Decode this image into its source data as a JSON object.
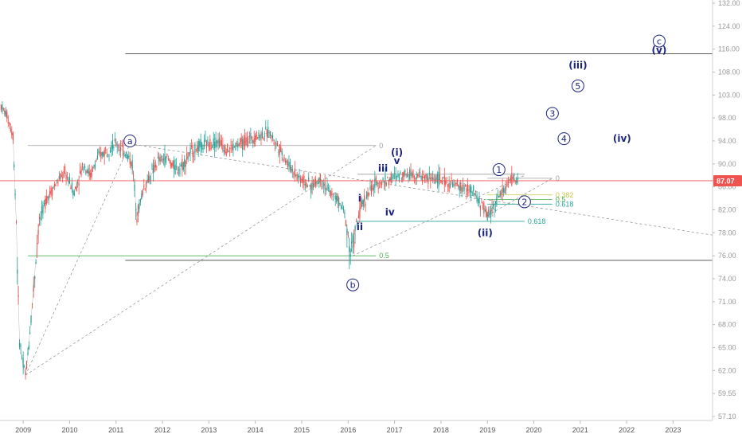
{
  "chart_data": {
    "type": "line",
    "title": "",
    "xlabel": "",
    "ylabel": "",
    "ylim": [
      56,
      134
    ],
    "xlim": [
      2008.5,
      2023.85
    ],
    "x_ticks": [
      "2009",
      "2010",
      "2011",
      "2012",
      "2013",
      "2014",
      "2015",
      "2016",
      "2017",
      "2018",
      "2019",
      "2020",
      "2021",
      "2022",
      "2023"
    ],
    "y_ticks": [
      "57.10",
      "59.55",
      "62.00",
      "65.00",
      "68.00",
      "71.00",
      "74.00",
      "76.00",
      "78.00",
      "82.00",
      "86.00",
      "90.00",
      "94.00",
      "98.00",
      "103.00",
      "108.00",
      "116.00",
      "124.00",
      "132.00"
    ],
    "last_price": {
      "value": 87.07,
      "label": "87.07",
      "color": "#ef5350"
    },
    "colors": {
      "up": "#26a69a",
      "down": "#ef5350",
      "price": "#d14b4b",
      "wave": "#1a237e",
      "hline": "#444444",
      "fib_green": "#4caf50",
      "fib_yellow": "#c8c84a",
      "fib_teal": "#26a69a"
    },
    "series": [
      {
        "x": [
          2008.5,
          2008.65,
          2008.78,
          2008.85,
          2008.92,
          2009.0,
          2009.05,
          2009.1,
          2009.17,
          2009.25,
          2009.35,
          2009.5,
          2009.7,
          2009.9,
          2010.1,
          2010.3,
          2010.45,
          2010.6,
          2010.8,
          2011.0,
          2011.2,
          2011.35,
          2011.45,
          2011.6,
          2011.75,
          2011.9,
          2012.1,
          2012.3,
          2012.45,
          2012.6,
          2012.8,
          2013.0,
          2013.2,
          2013.4,
          2013.55,
          2013.7,
          2013.9,
          2014.1,
          2014.3,
          2014.5,
          2014.7,
          2014.9,
          2015.05,
          2015.2,
          2015.4,
          2015.6,
          2015.75,
          2015.9,
          2016.0,
          2016.05,
          2016.1,
          2016.2,
          2016.3,
          2016.45,
          2016.6,
          2016.8,
          2016.95,
          2017.1,
          2017.3,
          2017.5,
          2017.7,
          2017.9,
          2018.05,
          2018.2,
          2018.4,
          2018.6,
          2018.75,
          2018.85,
          2018.95,
          2019.0,
          2019.15,
          2019.3,
          2019.45,
          2019.55,
          2019.65
        ],
        "y": [
          101,
          98.5,
          95,
          80,
          66,
          62.5,
          61.5,
          64,
          69,
          74.5,
          80,
          84,
          86.5,
          88.5,
          85,
          90,
          88,
          91,
          92.5,
          93.5,
          92,
          90,
          81,
          86,
          88,
          90.5,
          91,
          89,
          90,
          92,
          93,
          93.5,
          94,
          92.5,
          93,
          93.5,
          94.5,
          95,
          95.5,
          93,
          90,
          88,
          87,
          86,
          87.5,
          85,
          84,
          82,
          78,
          76.2,
          77,
          80,
          83,
          85,
          86.5,
          87,
          87.5,
          88,
          88.5,
          88,
          87.5,
          87.5,
          87,
          86.5,
          86,
          85.5,
          84.5,
          83,
          82,
          80.8,
          83,
          85,
          86.5,
          87.5,
          87.07
        ]
      }
    ],
    "horizontal_lines": [
      {
        "y": 114.4,
        "x_start": 2011.2,
        "x_end": 2023.85,
        "color": "#444444",
        "label": ""
      },
      {
        "y": 75.6,
        "x_start": 2011.2,
        "x_end": 2023.85,
        "color": "#444444",
        "label": ""
      }
    ],
    "fib_levels": [
      {
        "y": 93.2,
        "x_start": 2009.1,
        "x_end": 2016.6,
        "label": "0",
        "color": "#9e9e9e"
      },
      {
        "y": 76.0,
        "x_start": 2009.1,
        "x_end": 2016.6,
        "label": "0.5",
        "color": "#4caf50"
      },
      {
        "y": 80.0,
        "x_start": 2016.2,
        "x_end": 2019.8,
        "label": "0.618",
        "color": "#26a69a"
      },
      {
        "y": 88.2,
        "x_start": 2016.2,
        "x_end": 2019.8,
        "label": "",
        "color": "#9e9e9e"
      },
      {
        "y": 87.5,
        "x_start": 2019.0,
        "x_end": 2020.4,
        "label": "0",
        "color": "#9e9e9e"
      },
      {
        "y": 84.6,
        "x_start": 2019.0,
        "x_end": 2020.4,
        "label": "0.382",
        "color": "#c8c84a"
      },
      {
        "y": 83.8,
        "x_start": 2019.0,
        "x_end": 2020.4,
        "label": "0.5",
        "color": "#4caf50"
      },
      {
        "y": 83.0,
        "x_start": 2019.0,
        "x_end": 2020.4,
        "label": "0.618",
        "color": "#26a69a"
      }
    ],
    "trend_lines": [
      {
        "x1": 2009.05,
        "y1": 61.5,
        "x2": 2011.3,
        "y2": 93.5,
        "style": "dashed"
      },
      {
        "x1": 2009.05,
        "y1": 61.5,
        "x2": 2016.6,
        "y2": 93.2,
        "style": "dashed"
      },
      {
        "x1": 2011.3,
        "y1": 93.5,
        "x2": 2023.85,
        "y2": 77.8,
        "style": "dashed"
      },
      {
        "x1": 2016.1,
        "y1": 76.0,
        "x2": 2019.8,
        "y2": 88.0,
        "style": "dashed"
      },
      {
        "x1": 2019.0,
        "y1": 81.0,
        "x2": 2020.4,
        "y2": 87.5,
        "style": "dashed"
      }
    ],
    "wave_labels": [
      {
        "text": "a",
        "x": 2011.3,
        "y": 94.0,
        "circled": true
      },
      {
        "text": "b",
        "x": 2016.1,
        "y": 73.2,
        "circled": true
      },
      {
        "text": "c",
        "x": 2022.7,
        "y": 118.8,
        "circled": true
      },
      {
        "text": "(v)",
        "x": 2022.7,
        "y": 115.6,
        "circled": false
      },
      {
        "text": "(iii)",
        "x": 2020.95,
        "y": 110.4,
        "circled": false
      },
      {
        "text": "5",
        "x": 2020.95,
        "y": 105.0,
        "circled": true
      },
      {
        "text": "3",
        "x": 2020.4,
        "y": 99.0,
        "circled": true
      },
      {
        "text": "4",
        "x": 2020.65,
        "y": 94.4,
        "circled": true
      },
      {
        "text": "(iv)",
        "x": 2021.9,
        "y": 94.4,
        "circled": false
      },
      {
        "text": "1",
        "x": 2019.25,
        "y": 89.0,
        "circled": true
      },
      {
        "text": "2",
        "x": 2019.8,
        "y": 83.4,
        "circled": true
      },
      {
        "text": "(i)",
        "x": 2017.05,
        "y": 92.0,
        "circled": false
      },
      {
        "text": "v",
        "x": 2017.05,
        "y": 90.5,
        "circled": false
      },
      {
        "text": "iii",
        "x": 2016.75,
        "y": 89.2,
        "circled": false
      },
      {
        "text": "iv",
        "x": 2016.9,
        "y": 81.6,
        "circled": false
      },
      {
        "text": "i",
        "x": 2016.25,
        "y": 84.0,
        "circled": false
      },
      {
        "text": "ii",
        "x": 2016.25,
        "y": 79.0,
        "circled": false
      },
      {
        "text": "(ii)",
        "x": 2018.95,
        "y": 78.0,
        "circled": false
      }
    ]
  }
}
